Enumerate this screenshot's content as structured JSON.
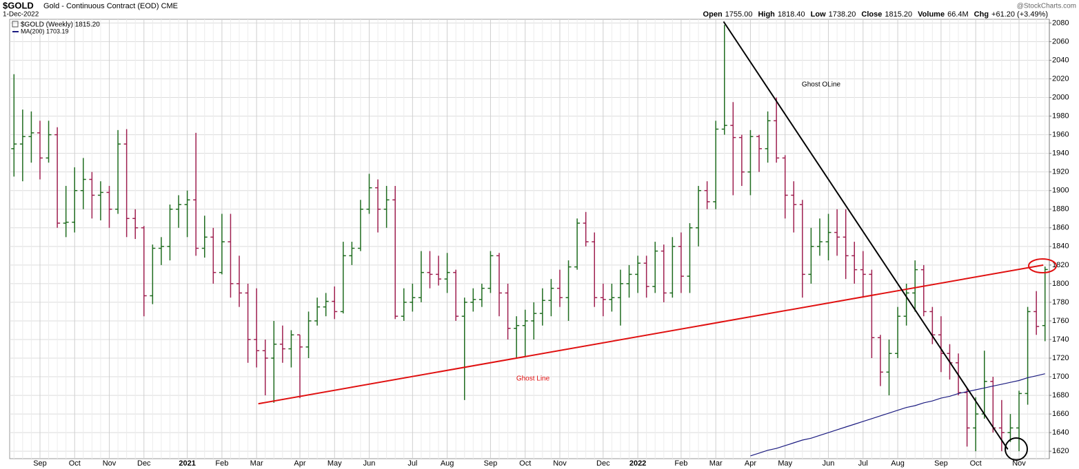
{
  "chart_data": {
    "type": "ohlc",
    "title": "$GOLD",
    "subtitle": "Gold - Continuous Contract (EOD) CME",
    "date": "1-Dec-2022",
    "watermark": "@StockCharts.com",
    "quote": [
      {
        "label": "Open",
        "value": "1755.00"
      },
      {
        "label": "High",
        "value": "1818.40"
      },
      {
        "label": "Low",
        "value": "1738.20"
      },
      {
        "label": "Close",
        "value": "1815.20"
      },
      {
        "label": "Volume",
        "value": "66.4M"
      },
      {
        "label": "Chg",
        "value": "+61.20 (+3.49%)"
      }
    ],
    "categories": [
      null,
      null,
      null,
      "Sep",
      null,
      null,
      null,
      "Oct",
      null,
      null,
      null,
      "Nov",
      null,
      null,
      null,
      "Dec",
      null,
      null,
      null,
      null,
      "2021",
      null,
      null,
      null,
      "Feb",
      null,
      null,
      null,
      "Mar",
      null,
      null,
      null,
      null,
      "Apr",
      null,
      null,
      null,
      "May",
      null,
      null,
      null,
      "Jun",
      null,
      null,
      null,
      null,
      "Jul",
      null,
      null,
      null,
      "Aug",
      null,
      null,
      null,
      null,
      "Sep",
      null,
      null,
      null,
      "Oct",
      null,
      null,
      null,
      "Nov",
      null,
      null,
      null,
      null,
      "Dec",
      null,
      null,
      null,
      "2022",
      null,
      null,
      null,
      null,
      "Feb",
      null,
      null,
      null,
      "Mar",
      null,
      null,
      null,
      "Apr",
      null,
      null,
      null,
      "May",
      null,
      null,
      null,
      null,
      "Jun",
      null,
      null,
      null,
      "Jul",
      null,
      null,
      null,
      "Aug",
      null,
      null,
      null,
      null,
      "Sep",
      null,
      null,
      null,
      "Oct",
      null,
      null,
      null,
      null,
      "Nov",
      null,
      null,
      null
    ],
    "series": [
      {
        "name": "$GOLD (Weekly) 1815.20",
        "up_color": "#1e6b1e",
        "down_color": "#9e1f4f",
        "open": [
          1945,
          1950,
          1958,
          1962,
          1935,
          1960,
          1865,
          1866,
          1900,
          1912,
          1895,
          1898,
          1880,
          1950,
          1870,
          1860,
          1787,
          1838,
          1840,
          1880,
          1885,
          1890,
          1838,
          1850,
          1812,
          1845,
          1800,
          1790,
          1740,
          1728,
          1720,
          1735,
          1730,
          1745,
          1732,
          1760,
          1775,
          1781,
          1770,
          1830,
          1838,
          1880,
          1903,
          1880,
          1890,
          1765,
          1780,
          1785,
          1812,
          1810,
          1805,
          1812,
          1765,
          1780,
          1783,
          1795,
          1830,
          1790,
          1752,
          1755,
          1760,
          1768,
          1782,
          1795,
          1785,
          1818,
          1865,
          1845,
          1785,
          1783,
          1785,
          1800,
          1810,
          1822,
          1797,
          1835,
          1790,
          1840,
          1808,
          1860,
          1900,
          1888,
          1966,
          1970,
          1957,
          1920,
          1958,
          1945,
          1975,
          1935,
          1895,
          1885,
          1810,
          1840,
          1845,
          1855,
          1850,
          1830,
          1815,
          1810,
          1742,
          1705,
          1725,
          1765,
          1790,
          1815,
          1770,
          1745,
          1725,
          1715,
          1683,
          1645,
          1660,
          1695,
          1645,
          1640,
          1645,
          1682,
          1770,
          1755
        ],
        "high": [
          2025,
          1987,
          1985,
          1975,
          1975,
          1968,
          1905,
          1925,
          1935,
          1920,
          1910,
          1905,
          1965,
          1966,
          1880,
          1862,
          1842,
          1850,
          1885,
          1895,
          1900,
          1962,
          1873,
          1860,
          1875,
          1875,
          1830,
          1800,
          1795,
          1740,
          1760,
          1755,
          1750,
          1745,
          1770,
          1785,
          1790,
          1797,
          1845,
          1845,
          1890,
          1918,
          1912,
          1905,
          1905,
          1795,
          1800,
          1835,
          1835,
          1830,
          1833,
          1815,
          1785,
          1795,
          1800,
          1835,
          1833,
          1800,
          1765,
          1772,
          1780,
          1795,
          1805,
          1815,
          1825,
          1870,
          1877,
          1855,
          1800,
          1800,
          1815,
          1820,
          1830,
          1830,
          1845,
          1842,
          1850,
          1855,
          1865,
          1905,
          1910,
          1975,
          2078,
          1995,
          1960,
          1965,
          1960,
          1985,
          2000,
          1938,
          1910,
          1890,
          1860,
          1870,
          1875,
          1880,
          1880,
          1845,
          1835,
          1815,
          1745,
          1740,
          1775,
          1800,
          1825,
          1820,
          1775,
          1765,
          1735,
          1725,
          1688,
          1678,
          1728,
          1700,
          1675,
          1660,
          1685,
          1775,
          1792,
          1818.4
        ],
        "low": [
          1915,
          1910,
          1930,
          1912,
          1930,
          1860,
          1850,
          1855,
          1880,
          1870,
          1868,
          1860,
          1875,
          1850,
          1848,
          1765,
          1778,
          1820,
          1825,
          1860,
          1850,
          1830,
          1828,
          1800,
          1810,
          1785,
          1775,
          1715,
          1710,
          1680,
          1672,
          1715,
          1710,
          1677,
          1720,
          1755,
          1765,
          1762,
          1768,
          1820,
          1835,
          1875,
          1855,
          1860,
          1762,
          1760,
          1770,
          1780,
          1795,
          1798,
          1790,
          1760,
          1675,
          1770,
          1775,
          1790,
          1765,
          1740,
          1720,
          1722,
          1740,
          1755,
          1765,
          1775,
          1760,
          1815,
          1840,
          1775,
          1765,
          1770,
          1755,
          1785,
          1790,
          1785,
          1790,
          1780,
          1785,
          1790,
          1790,
          1840,
          1880,
          1880,
          1960,
          1895,
          1905,
          1895,
          1920,
          1930,
          1930,
          1870,
          1855,
          1785,
          1800,
          1830,
          1825,
          1830,
          1805,
          1800,
          1785,
          1720,
          1690,
          1680,
          1720,
          1755,
          1770,
          1765,
          1735,
          1705,
          1697,
          1680,
          1625,
          1620,
          1655,
          1640,
          1620,
          1630,
          1620,
          1670,
          1745,
          1738.2
        ],
        "close": [
          1950,
          1958,
          1962,
          1935,
          1960,
          1865,
          1866,
          1900,
          1912,
          1895,
          1898,
          1880,
          1950,
          1870,
          1860,
          1787,
          1838,
          1840,
          1880,
          1885,
          1890,
          1838,
          1850,
          1812,
          1845,
          1800,
          1790,
          1740,
          1728,
          1720,
          1735,
          1730,
          1745,
          1732,
          1760,
          1775,
          1781,
          1770,
          1830,
          1838,
          1880,
          1903,
          1880,
          1890,
          1765,
          1780,
          1785,
          1812,
          1810,
          1805,
          1812,
          1765,
          1780,
          1783,
          1795,
          1830,
          1790,
          1752,
          1755,
          1760,
          1768,
          1782,
          1795,
          1785,
          1818,
          1865,
          1845,
          1785,
          1783,
          1785,
          1800,
          1810,
          1822,
          1797,
          1835,
          1790,
          1840,
          1808,
          1860,
          1900,
          1888,
          1966,
          1970,
          1957,
          1920,
          1958,
          1945,
          1975,
          1935,
          1895,
          1885,
          1810,
          1840,
          1845,
          1855,
          1850,
          1830,
          1815,
          1810,
          1742,
          1705,
          1725,
          1765,
          1790,
          1815,
          1770,
          1745,
          1725,
          1715,
          1683,
          1645,
          1660,
          1695,
          1645,
          1640,
          1645,
          1682,
          1770,
          1754,
          1815.2
        ]
      },
      {
        "name": "MA(200) 1703.19",
        "color": "#1a1a80",
        "values": [
          null,
          null,
          null,
          null,
          null,
          null,
          null,
          null,
          null,
          null,
          null,
          null,
          null,
          null,
          null,
          null,
          null,
          null,
          null,
          null,
          null,
          null,
          null,
          null,
          null,
          null,
          null,
          null,
          null,
          null,
          null,
          null,
          null,
          null,
          null,
          null,
          null,
          null,
          null,
          null,
          null,
          null,
          null,
          null,
          null,
          null,
          null,
          null,
          null,
          null,
          null,
          null,
          null,
          null,
          null,
          null,
          null,
          null,
          null,
          null,
          null,
          null,
          null,
          null,
          null,
          null,
          null,
          null,
          null,
          null,
          null,
          null,
          null,
          null,
          null,
          null,
          null,
          null,
          null,
          null,
          null,
          null,
          null,
          null,
          null,
          1615,
          1618,
          1621,
          1623,
          1626,
          1629,
          1632,
          1634,
          1637,
          1640,
          1643,
          1646,
          1649,
          1652,
          1655,
          1658,
          1661,
          1664,
          1667,
          1669,
          1672,
          1674,
          1677,
          1679,
          1682,
          1684,
          1686,
          1688,
          1690,
          1692,
          1694,
          1696,
          1699,
          1701,
          1703.19
        ]
      }
    ],
    "trendlines": [
      {
        "name": "Ghost Line",
        "color": "#e01010",
        "x": [
          28.2,
          118.8
        ],
        "values": [
          1671,
          1820
        ]
      },
      {
        "name": "Ghost OLine",
        "color": "#000000",
        "x": [
          81.9,
          114.7
        ],
        "values": [
          2081.5,
          1622
        ]
      }
    ],
    "ylim": [
      1612,
      2084
    ],
    "yticks": [
      1620,
      1640,
      1660,
      1680,
      1700,
      1720,
      1740,
      1760,
      1780,
      1800,
      1820,
      1840,
      1860,
      1880,
      1900,
      1920,
      1940,
      1960,
      1980,
      2000,
      2020,
      2040,
      2060,
      2080
    ],
    "grid": true
  }
}
